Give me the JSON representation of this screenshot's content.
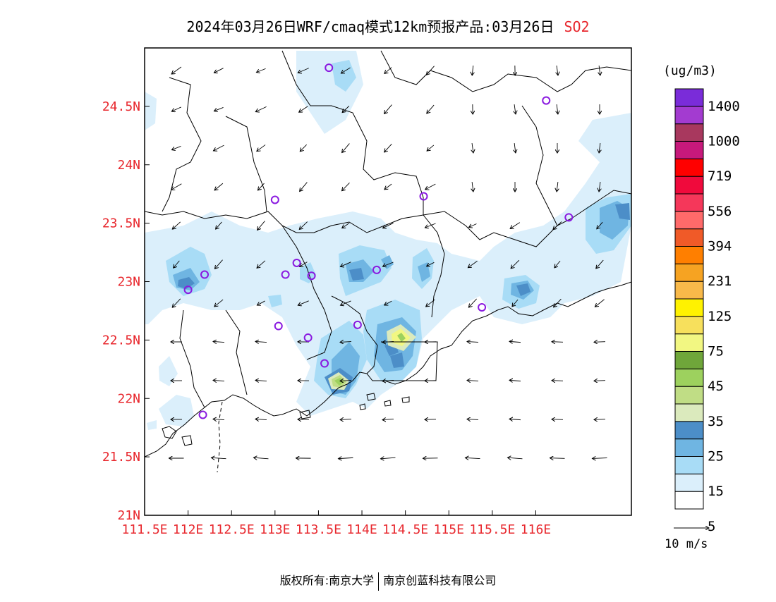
{
  "title": {
    "text": "2024年03月26日WRF/cmaq模式12km预报产品:03月26日",
    "pollutant": "SO2"
  },
  "legend": {
    "unit": "(ug/m3)",
    "levels": [
      "1400",
      "1000",
      "719",
      "556",
      "394",
      "231",
      "125",
      "75",
      "45",
      "35",
      "25",
      "15",
      "5"
    ],
    "colors": [
      "#ffffff",
      "#dbeffb",
      "#a8dcf6",
      "#6fb5e2",
      "#4c8ec8",
      "#dbeabd",
      "#c0dd85",
      "#9dd15e",
      "#6fa63a",
      "#f2f782",
      "#f7e05c",
      "#fff200",
      "#f8b94a",
      "#f6a322",
      "#ff7f00",
      "#f05a28",
      "#ff6a6a",
      "#f5375a",
      "#f00a3c",
      "#ff0000",
      "#c7197b",
      "#a8385e",
      "#a33bd0",
      "#7a2cd9"
    ]
  },
  "axes": {
    "lon_labels": [
      "111.5E",
      "112E",
      "112.5E",
      "113E",
      "113.5E",
      "114E",
      "114.5E",
      "115E",
      "115.5E",
      "116E"
    ],
    "lat_labels": [
      "21N",
      "21.5N",
      "22N",
      "22.5N",
      "23N",
      "23.5N",
      "24N",
      "24.5N"
    ],
    "lon_range": [
      111.5,
      117.1
    ],
    "lat_range": [
      21.0,
      25.0
    ],
    "label_color": "#e8282e"
  },
  "wind_reference": {
    "label": "10 m/s"
  },
  "copyright": {
    "left": "版权所有:南京大学",
    "right": "南京创蓝科技有限公司"
  },
  "stations": [
    [
      113.62,
      24.83
    ],
    [
      116.12,
      24.55
    ],
    [
      113.0,
      23.7
    ],
    [
      114.71,
      23.73
    ],
    [
      116.38,
      23.55
    ],
    [
      113.25,
      23.16
    ],
    [
      113.12,
      23.06
    ],
    [
      112.19,
      23.06
    ],
    [
      113.42,
      23.05
    ],
    [
      112.0,
      22.93
    ],
    [
      114.17,
      23.1
    ],
    [
      115.38,
      22.78
    ],
    [
      113.04,
      22.62
    ],
    [
      113.95,
      22.63
    ],
    [
      113.38,
      22.52
    ],
    [
      113.57,
      22.3
    ],
    [
      112.17,
      21.86
    ]
  ],
  "map_colors": {
    "coast": "#000000",
    "wind": "#000000",
    "station": "#8a1ae0"
  }
}
